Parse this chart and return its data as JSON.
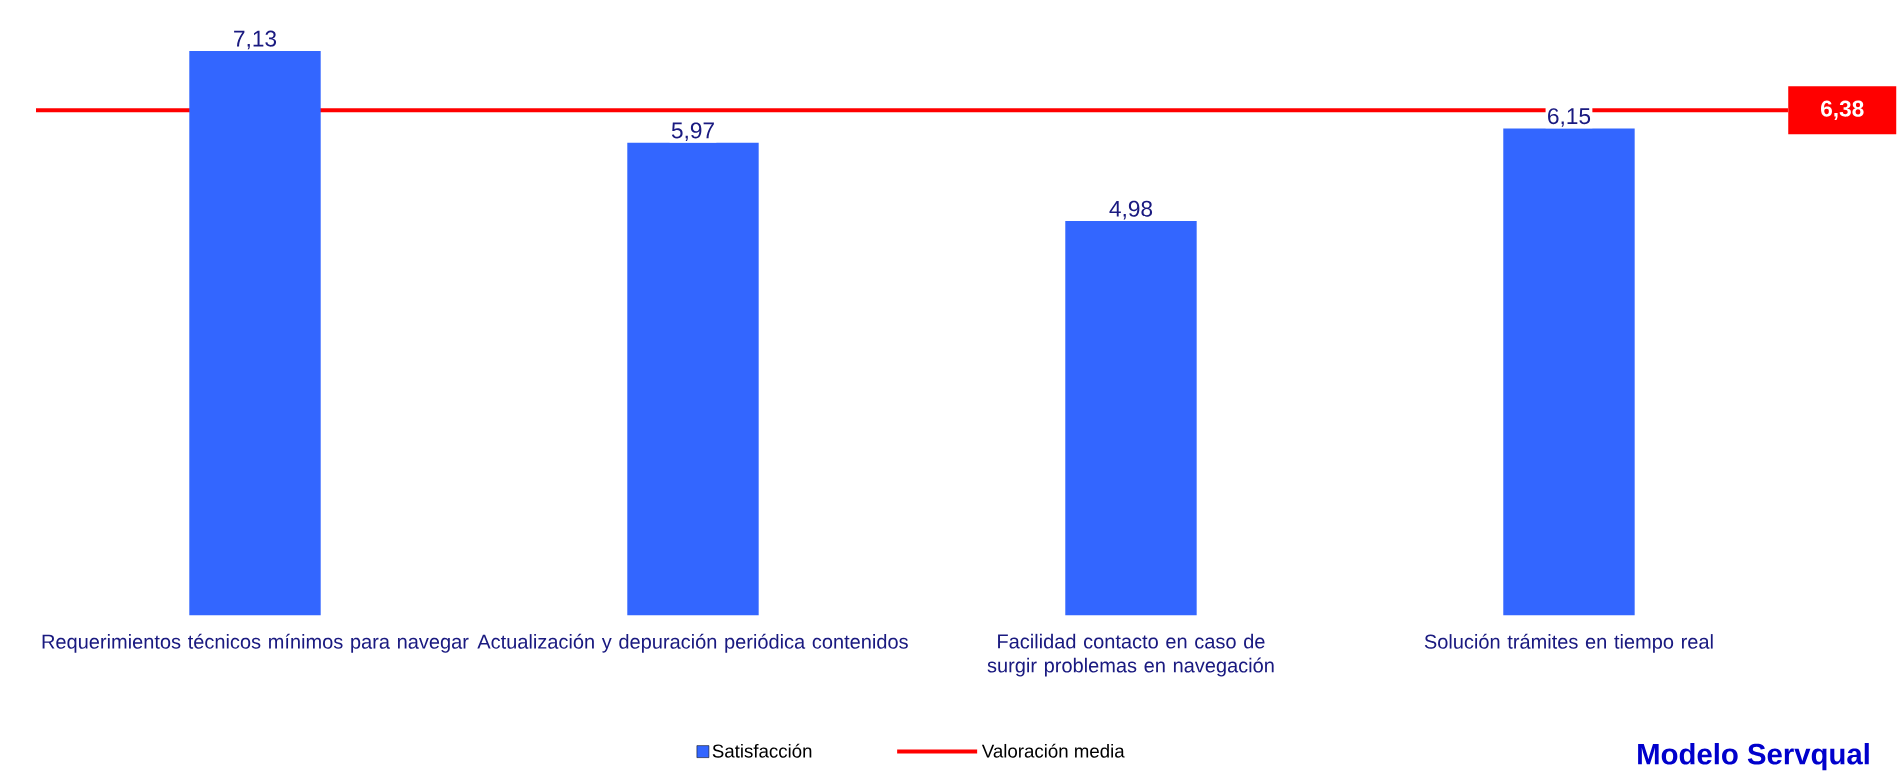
{
  "chart_data": {
    "type": "bar",
    "categories": [
      "Requerimientos técnicos mínimos para navegar",
      "Actualización y depuración periódica contenidos",
      "Facilidad contacto en caso de surgir problemas en navegación",
      "Solución trámites en tiempo real"
    ],
    "series": [
      {
        "name": "Satisfacción",
        "color": "#3366ff",
        "values": [
          7.13,
          5.97,
          4.98,
          6.15
        ],
        "value_labels": [
          "7,13",
          "5,97",
          "4,98",
          "6,15"
        ]
      }
    ],
    "tick_labels": "x",
    "ref_lines": [
      {
        "axis": "y",
        "value": 6.38,
        "label": "6,38",
        "color": "#ff0000"
      }
    ],
    "annotations": [
      "Modelo Servqual",
      "Valoración media"
    ],
    "legend": "bottom",
    "grid": false
  }
}
